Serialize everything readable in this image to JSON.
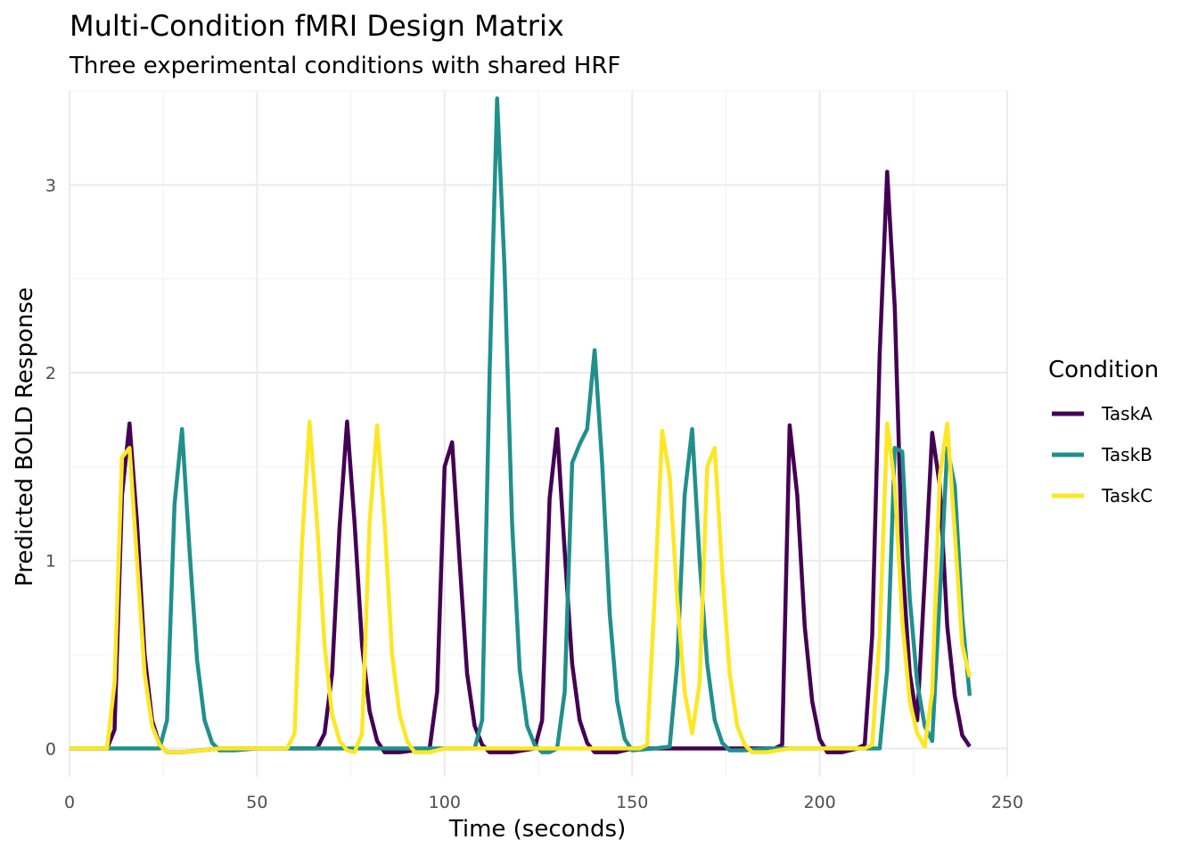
{
  "chart_data": {
    "type": "line",
    "title": "Multi-Condition fMRI Design Matrix",
    "subtitle": "Three experimental conditions with shared HRF",
    "xlabel": "Time (seconds)",
    "ylabel": "Predicted BOLD Response",
    "xlim": [
      0,
      250
    ],
    "ylim": [
      -0.15,
      3.5
    ],
    "x_ticks": [
      0,
      50,
      100,
      150,
      200,
      250
    ],
    "y_ticks": [
      0,
      1,
      2,
      3
    ],
    "grid": true,
    "legend": {
      "title": "Condition",
      "placement": "right"
    },
    "series": [
      {
        "name": "TaskA",
        "color": "#440154",
        "points": [
          [
            0,
            0
          ],
          [
            10,
            0
          ],
          [
            12,
            0.1
          ],
          [
            14,
            1.35
          ],
          [
            16,
            1.73
          ],
          [
            18,
            1.2
          ],
          [
            20,
            0.5
          ],
          [
            22,
            0.15
          ],
          [
            24,
            0.02
          ],
          [
            26,
            -0.02
          ],
          [
            30,
            -0.02
          ],
          [
            40,
            0
          ],
          [
            66,
            0
          ],
          [
            68,
            0.08
          ],
          [
            70,
            0.4
          ],
          [
            72,
            1.18
          ],
          [
            74,
            1.74
          ],
          [
            76,
            1.2
          ],
          [
            78,
            0.55
          ],
          [
            80,
            0.2
          ],
          [
            82,
            0.04
          ],
          [
            84,
            -0.02
          ],
          [
            88,
            -0.02
          ],
          [
            96,
            0
          ],
          [
            98,
            0.3
          ],
          [
            100,
            1.5
          ],
          [
            102,
            1.63
          ],
          [
            104,
            1.0
          ],
          [
            106,
            0.4
          ],
          [
            108,
            0.12
          ],
          [
            110,
            0.02
          ],
          [
            112,
            -0.02
          ],
          [
            118,
            -0.02
          ],
          [
            124,
            0
          ],
          [
            126,
            0.15
          ],
          [
            128,
            1.33
          ],
          [
            130,
            1.7
          ],
          [
            132,
            1.05
          ],
          [
            134,
            0.45
          ],
          [
            136,
            0.15
          ],
          [
            138,
            0.03
          ],
          [
            140,
            -0.02
          ],
          [
            146,
            -0.02
          ],
          [
            150,
            0
          ],
          [
            188,
            0
          ],
          [
            190,
            0.02
          ],
          [
            192,
            1.72
          ],
          [
            194,
            1.35
          ],
          [
            196,
            0.65
          ],
          [
            198,
            0.25
          ],
          [
            200,
            0.05
          ],
          [
            202,
            -0.02
          ],
          [
            206,
            -0.02
          ],
          [
            210,
            0
          ],
          [
            212,
            0.02
          ],
          [
            214,
            0.6
          ],
          [
            216,
            2.1
          ],
          [
            218,
            3.07
          ],
          [
            220,
            2.35
          ],
          [
            222,
            1.0
          ],
          [
            224,
            0.4
          ],
          [
            226,
            0.15
          ],
          [
            228,
            0.9
          ],
          [
            230,
            1.68
          ],
          [
            232,
            1.4
          ],
          [
            234,
            0.65
          ],
          [
            236,
            0.28
          ],
          [
            238,
            0.07
          ],
          [
            240,
            0.01
          ]
        ]
      },
      {
        "name": "TaskB",
        "color": "#21908c",
        "points": [
          [
            0,
            0
          ],
          [
            24,
            0
          ],
          [
            26,
            0.15
          ],
          [
            28,
            1.3
          ],
          [
            30,
            1.7
          ],
          [
            32,
            1.05
          ],
          [
            34,
            0.47
          ],
          [
            36,
            0.15
          ],
          [
            38,
            0.03
          ],
          [
            40,
            -0.01
          ],
          [
            44,
            -0.01
          ],
          [
            50,
            0
          ],
          [
            108,
            0
          ],
          [
            110,
            0.15
          ],
          [
            112,
            2.0
          ],
          [
            114,
            3.46
          ],
          [
            116,
            2.55
          ],
          [
            118,
            1.2
          ],
          [
            120,
            0.42
          ],
          [
            122,
            0.12
          ],
          [
            124,
            0.02
          ],
          [
            126,
            -0.02
          ],
          [
            128,
            -0.02
          ],
          [
            130,
            0
          ],
          [
            132,
            0.3
          ],
          [
            134,
            1.52
          ],
          [
            136,
            1.62
          ],
          [
            138,
            1.7
          ],
          [
            140,
            2.12
          ],
          [
            142,
            1.52
          ],
          [
            144,
            0.72
          ],
          [
            146,
            0.25
          ],
          [
            148,
            0.05
          ],
          [
            150,
            -0.01
          ],
          [
            156,
            0
          ],
          [
            160,
            0.01
          ],
          [
            162,
            0.45
          ],
          [
            164,
            1.35
          ],
          [
            166,
            1.7
          ],
          [
            168,
            1.0
          ],
          [
            170,
            0.45
          ],
          [
            172,
            0.15
          ],
          [
            174,
            0.03
          ],
          [
            176,
            -0.01
          ],
          [
            180,
            -0.01
          ],
          [
            186,
            0
          ],
          [
            216,
            0
          ],
          [
            218,
            0.42
          ],
          [
            220,
            1.6
          ],
          [
            222,
            1.58
          ],
          [
            224,
            0.8
          ],
          [
            226,
            0.35
          ],
          [
            228,
            0.12
          ],
          [
            230,
            0.04
          ],
          [
            232,
            0.8
          ],
          [
            234,
            1.6
          ],
          [
            236,
            1.4
          ],
          [
            238,
            0.7
          ],
          [
            240,
            0.28
          ]
        ]
      },
      {
        "name": "TaskC",
        "color": "#fde725",
        "points": [
          [
            0,
            0
          ],
          [
            10,
            0
          ],
          [
            12,
            0.35
          ],
          [
            14,
            1.55
          ],
          [
            16,
            1.6
          ],
          [
            18,
            1.0
          ],
          [
            20,
            0.4
          ],
          [
            22,
            0.12
          ],
          [
            24,
            0.02
          ],
          [
            26,
            -0.02
          ],
          [
            30,
            -0.02
          ],
          [
            40,
            0
          ],
          [
            58,
            0
          ],
          [
            60,
            0.08
          ],
          [
            62,
            1.1
          ],
          [
            64,
            1.74
          ],
          [
            66,
            1.2
          ],
          [
            68,
            0.55
          ],
          [
            70,
            0.18
          ],
          [
            72,
            0.04
          ],
          [
            74,
            -0.01
          ],
          [
            76,
            -0.02
          ],
          [
            78,
            0.08
          ],
          [
            80,
            1.2
          ],
          [
            82,
            1.72
          ],
          [
            84,
            1.2
          ],
          [
            86,
            0.5
          ],
          [
            88,
            0.18
          ],
          [
            90,
            0.04
          ],
          [
            92,
            -0.02
          ],
          [
            96,
            -0.02
          ],
          [
            100,
            0
          ],
          [
            152,
            0
          ],
          [
            154,
            0.02
          ],
          [
            156,
            0.8
          ],
          [
            158,
            1.69
          ],
          [
            160,
            1.45
          ],
          [
            162,
            0.8
          ],
          [
            164,
            0.3
          ],
          [
            166,
            0.08
          ],
          [
            168,
            0.35
          ],
          [
            170,
            1.5
          ],
          [
            172,
            1.6
          ],
          [
            174,
            0.95
          ],
          [
            176,
            0.4
          ],
          [
            178,
            0.12
          ],
          [
            180,
            0.02
          ],
          [
            182,
            -0.02
          ],
          [
            186,
            -0.02
          ],
          [
            192,
            0
          ],
          [
            212,
            0
          ],
          [
            214,
            0.02
          ],
          [
            216,
            0.6
          ],
          [
            218,
            1.73
          ],
          [
            220,
            1.4
          ],
          [
            222,
            0.68
          ],
          [
            224,
            0.25
          ],
          [
            226,
            0.08
          ],
          [
            228,
            0.01
          ],
          [
            230,
            0.3
          ],
          [
            232,
            1.45
          ],
          [
            234,
            1.73
          ],
          [
            236,
            1.15
          ],
          [
            238,
            0.55
          ],
          [
            240,
            0.38
          ]
        ]
      }
    ]
  }
}
